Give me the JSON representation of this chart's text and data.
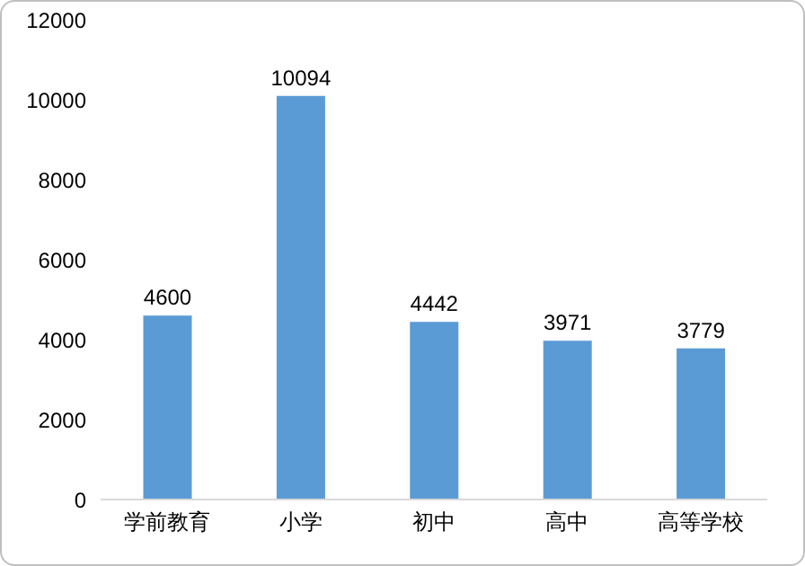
{
  "chart_data": {
    "type": "bar",
    "categories": [
      "学前教育",
      "小学",
      "初中",
      "高中",
      "高等学校"
    ],
    "values": [
      4600,
      10094,
      4442,
      3971,
      3779
    ],
    "color": "#5b9bd5",
    "ylim": [
      0,
      12000
    ],
    "yticks": [
      0,
      2000,
      4000,
      6000,
      8000,
      10000,
      12000
    ],
    "data_labels": true
  }
}
